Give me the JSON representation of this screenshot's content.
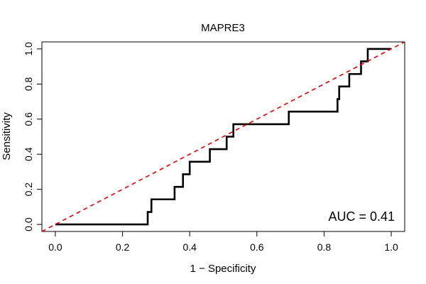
{
  "chart_data": {
    "type": "line",
    "title": "MAPRE3",
    "xlabel": "1 − Specificity",
    "ylabel": "Sensitivity",
    "xlim": [
      -0.04,
      1.04
    ],
    "ylim": [
      -0.04,
      1.04
    ],
    "x_ticks": [
      "0.0",
      "0.2",
      "0.4",
      "0.6",
      "0.8",
      "1.0"
    ],
    "y_ticks": [
      "0.0",
      "0.2",
      "0.4",
      "0.6",
      "0.8",
      "1.0"
    ],
    "grid": false,
    "annotation": "AUC = 0.41",
    "series": [
      {
        "type": "step",
        "color": "#000000",
        "points": [
          [
            0.0,
            0.0
          ],
          [
            0.275,
            0.0
          ],
          [
            0.275,
            0.071
          ],
          [
            0.286,
            0.071
          ],
          [
            0.286,
            0.143
          ],
          [
            0.355,
            0.143
          ],
          [
            0.355,
            0.214
          ],
          [
            0.38,
            0.214
          ],
          [
            0.38,
            0.286
          ],
          [
            0.4,
            0.286
          ],
          [
            0.4,
            0.357
          ],
          [
            0.46,
            0.357
          ],
          [
            0.46,
            0.429
          ],
          [
            0.51,
            0.429
          ],
          [
            0.51,
            0.5
          ],
          [
            0.53,
            0.5
          ],
          [
            0.53,
            0.571
          ],
          [
            0.695,
            0.571
          ],
          [
            0.695,
            0.643
          ],
          [
            0.84,
            0.643
          ],
          [
            0.84,
            0.714
          ],
          [
            0.845,
            0.714
          ],
          [
            0.845,
            0.786
          ],
          [
            0.875,
            0.786
          ],
          [
            0.875,
            0.857
          ],
          [
            0.91,
            0.857
          ],
          [
            0.91,
            0.929
          ],
          [
            0.93,
            0.929
          ],
          [
            0.93,
            1.0
          ],
          [
            1.0,
            1.0
          ]
        ]
      },
      {
        "type": "reference-diagonal",
        "color": "#e00000",
        "points": [
          [
            -0.04,
            -0.04
          ],
          [
            1.04,
            1.04
          ]
        ]
      }
    ]
  }
}
